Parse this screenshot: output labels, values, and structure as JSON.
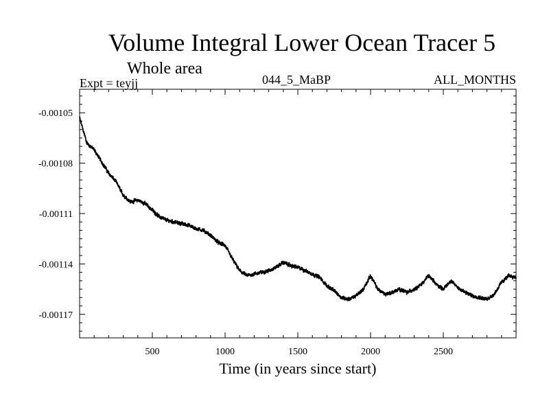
{
  "chart_data": {
    "type": "line",
    "title": "Volume Integral Lower Ocean Tracer 5",
    "subtitle": "Whole area",
    "labels": {
      "left": "Expt = teyjj",
      "center": "044_5_MaBP",
      "right": "ALL_MONTHS"
    },
    "xlabel": "Time (in years since start)",
    "ylabel": "",
    "xlim": [
      0,
      3000
    ],
    "ylim": [
      -0.001184,
      -0.001036
    ],
    "x_ticks": [
      500,
      1000,
      1500,
      2000,
      2500
    ],
    "x_tick_labels": [
      "500",
      "1000",
      "1500",
      "2000",
      "2500"
    ],
    "y_ticks": [
      -0.00105,
      -0.00108,
      -0.00111,
      -0.00114,
      -0.00117
    ],
    "y_tick_labels": [
      "-0.00105",
      "-0.00108",
      "-0.00111",
      "-0.00114",
      "-0.00117"
    ],
    "grid": false,
    "series": [
      {
        "name": "Lower Ocean Tracer 5",
        "color": "#000000",
        "x": [
          0,
          50,
          100,
          150,
          200,
          250,
          300,
          350,
          400,
          450,
          500,
          550,
          600,
          650,
          700,
          750,
          800,
          850,
          900,
          950,
          1000,
          1050,
          1100,
          1150,
          1200,
          1250,
          1300,
          1350,
          1400,
          1450,
          1500,
          1550,
          1600,
          1650,
          1700,
          1750,
          1800,
          1850,
          1900,
          1950,
          2000,
          2050,
          2100,
          2150,
          2200,
          2250,
          2300,
          2350,
          2400,
          2450,
          2500,
          2550,
          2600,
          2650,
          2700,
          2750,
          2800,
          2850,
          2900,
          2950,
          3000
        ],
        "values": [
          -0.001053,
          -0.001068,
          -0.001072,
          -0.001079,
          -0.001086,
          -0.001091,
          -0.001099,
          -0.001103,
          -0.001102,
          -0.001104,
          -0.001108,
          -0.001112,
          -0.001114,
          -0.001115,
          -0.001116,
          -0.001117,
          -0.001119,
          -0.00112,
          -0.001123,
          -0.001127,
          -0.001129,
          -0.001137,
          -0.001144,
          -0.001147,
          -0.001146,
          -0.001145,
          -0.001144,
          -0.001142,
          -0.001139,
          -0.001141,
          -0.001142,
          -0.001144,
          -0.001146,
          -0.001148,
          -0.001153,
          -0.001156,
          -0.00116,
          -0.001161,
          -0.001159,
          -0.001155,
          -0.001147,
          -0.001155,
          -0.001158,
          -0.001157,
          -0.001155,
          -0.001157,
          -0.001155,
          -0.001152,
          -0.001147,
          -0.001152,
          -0.001155,
          -0.00115,
          -0.001154,
          -0.001157,
          -0.001159,
          -0.00116,
          -0.001161,
          -0.001158,
          -0.001151,
          -0.001147,
          -0.001148
        ]
      }
    ]
  }
}
